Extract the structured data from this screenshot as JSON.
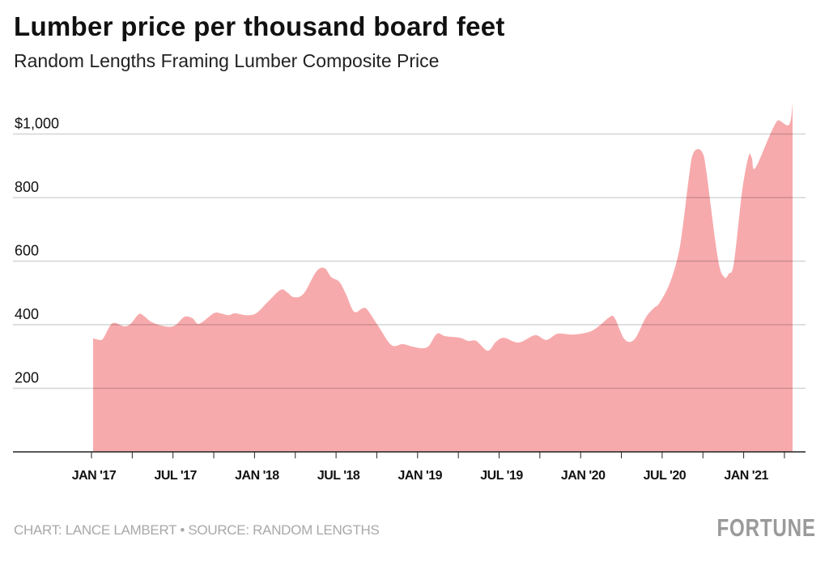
{
  "chart_data": {
    "type": "area",
    "title": "Lumber price per thousand board feet",
    "subtitle": "Random Lengths Framing Lumber Composite Price",
    "xlabel": "",
    "ylabel": "",
    "ylim": [
      0,
      1100
    ],
    "xlim": [
      2016.75,
      2021.4
    ],
    "grid": true,
    "y_ticks": [
      {
        "value": 200,
        "label": "200"
      },
      {
        "value": 400,
        "label": "400"
      },
      {
        "value": 600,
        "label": "600"
      },
      {
        "value": 800,
        "label": "800"
      },
      {
        "value": 1000,
        "label": "$1,000"
      }
    ],
    "x_ticks": [
      {
        "value": 2017.0,
        "label": "JAN '17"
      },
      {
        "value": 2017.5,
        "label": "JUL '17"
      },
      {
        "value": 2018.0,
        "label": "JAN '18"
      },
      {
        "value": 2018.5,
        "label": "JUL '18"
      },
      {
        "value": 2019.0,
        "label": "JAN '19"
      },
      {
        "value": 2019.5,
        "label": "JUL '19"
      },
      {
        "value": 2020.0,
        "label": "JAN '20"
      },
      {
        "value": 2020.5,
        "label": "JUL '20"
      },
      {
        "value": 2021.0,
        "label": "JAN '21"
      }
    ],
    "minor_tick_step_years": 0.25,
    "color": "#f7aaac",
    "series": [
      {
        "name": "Framing Lumber Composite Price ($)",
        "points": [
          [
            2017.01,
            357
          ],
          [
            2017.06,
            352
          ],
          [
            2017.08,
            364
          ],
          [
            2017.13,
            405
          ],
          [
            2017.2,
            395
          ],
          [
            2017.24,
            403
          ],
          [
            2017.29,
            433
          ],
          [
            2017.32,
            428
          ],
          [
            2017.37,
            408
          ],
          [
            2017.45,
            395
          ],
          [
            2017.51,
            397
          ],
          [
            2017.57,
            425
          ],
          [
            2017.62,
            420
          ],
          [
            2017.66,
            403
          ],
          [
            2017.75,
            436
          ],
          [
            2017.79,
            436
          ],
          [
            2017.84,
            430
          ],
          [
            2017.88,
            436
          ],
          [
            2017.95,
            430
          ],
          [
            2018.01,
            436
          ],
          [
            2018.08,
            471
          ],
          [
            2018.16,
            510
          ],
          [
            2018.2,
            502
          ],
          [
            2018.24,
            487
          ],
          [
            2018.3,
            497
          ],
          [
            2018.38,
            568
          ],
          [
            2018.43,
            578
          ],
          [
            2018.47,
            550
          ],
          [
            2018.52,
            535
          ],
          [
            2018.56,
            497
          ],
          [
            2018.61,
            441
          ],
          [
            2018.66,
            451
          ],
          [
            2018.69,
            448
          ],
          [
            2018.76,
            395
          ],
          [
            2018.84,
            336
          ],
          [
            2018.91,
            339
          ],
          [
            2018.97,
            331
          ],
          [
            2019.03,
            326
          ],
          [
            2019.07,
            334
          ],
          [
            2019.12,
            372
          ],
          [
            2019.17,
            364
          ],
          [
            2019.26,
            359
          ],
          [
            2019.31,
            349
          ],
          [
            2019.36,
            349
          ],
          [
            2019.43,
            318
          ],
          [
            2019.48,
            346
          ],
          [
            2019.53,
            359
          ],
          [
            2019.62,
            344
          ],
          [
            2019.72,
            367
          ],
          [
            2019.79,
            352
          ],
          [
            2019.86,
            372
          ],
          [
            2019.95,
            369
          ],
          [
            2020.05,
            377
          ],
          [
            2020.11,
            395
          ],
          [
            2020.18,
            425
          ],
          [
            2020.21,
            420
          ],
          [
            2020.27,
            354
          ],
          [
            2020.33,
            354
          ],
          [
            2020.4,
            423
          ],
          [
            2020.45,
            453
          ],
          [
            2020.48,
            466
          ],
          [
            2020.54,
            522
          ],
          [
            2020.59,
            601
          ],
          [
            2020.62,
            683
          ],
          [
            2020.67,
            887
          ],
          [
            2020.69,
            938
          ],
          [
            2020.72,
            953
          ],
          [
            2020.75,
            938
          ],
          [
            2020.77,
            887
          ],
          [
            2020.84,
            614
          ],
          [
            2020.88,
            550
          ],
          [
            2020.91,
            561
          ],
          [
            2020.94,
            594
          ],
          [
            2020.99,
            818
          ],
          [
            2021.03,
            930
          ],
          [
            2021.05,
            925
          ],
          [
            2021.07,
            892
          ],
          [
            2021.16,
            996
          ],
          [
            2021.2,
            1037
          ],
          [
            2021.22,
            1042
          ],
          [
            2021.27,
            1027
          ],
          [
            2021.29,
            1047
          ],
          [
            2021.3,
            1098
          ]
        ]
      }
    ]
  },
  "footer": {
    "credit": "CHART: LANCE LAMBERT • SOURCE: RANDOM LENGTHS",
    "logo": "FORTUNE"
  }
}
